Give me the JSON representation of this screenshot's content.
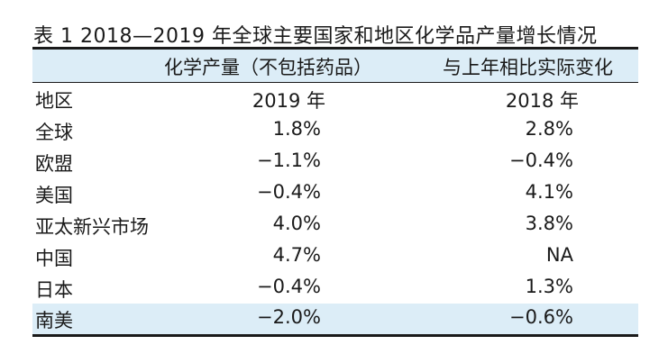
{
  "caption": "表 1  2018—2019 年全球主要国家和地区化学品产量增长情况",
  "header": {
    "col1": "化学产量（不包括药品）",
    "col2": "与上年相比实际变化"
  },
  "rows": [
    {
      "region": "地区",
      "y2019": "2019 年",
      "y2018": "2018 年"
    },
    {
      "region": "全球",
      "y2019": "1.8%",
      "y2018": "2.8%"
    },
    {
      "region": "欧盟",
      "y2019": "−1.1%",
      "y2018": "−0.4%"
    },
    {
      "region": "美国",
      "y2019": "−0.4%",
      "y2018": "4.1%"
    },
    {
      "region": "亚太新兴市场",
      "y2019": "4.0%",
      "y2018": "3.8%"
    },
    {
      "region": "中国",
      "y2019": "4.7%",
      "y2018": "NA"
    },
    {
      "region": "日本",
      "y2019": "−0.4%",
      "y2018": "1.3%"
    },
    {
      "region": "南美",
      "y2019": "−2.0%",
      "y2018": "−0.6%"
    }
  ],
  "colors": {
    "header_bg": "#dcedf7",
    "rule": "#1a1a1a"
  }
}
